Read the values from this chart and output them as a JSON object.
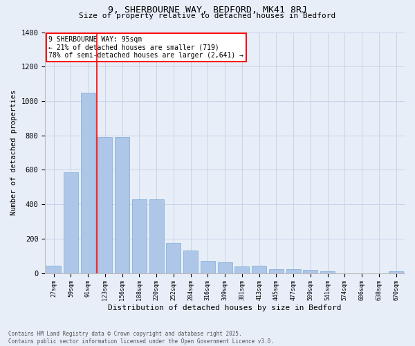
{
  "title_line1": "9, SHERBOURNE WAY, BEDFORD, MK41 8RJ",
  "title_line2": "Size of property relative to detached houses in Bedford",
  "xlabel": "Distribution of detached houses by size in Bedford",
  "ylabel": "Number of detached properties",
  "categories": [
    "27sqm",
    "59sqm",
    "91sqm",
    "123sqm",
    "156sqm",
    "188sqm",
    "220sqm",
    "252sqm",
    "284sqm",
    "316sqm",
    "349sqm",
    "381sqm",
    "413sqm",
    "445sqm",
    "477sqm",
    "509sqm",
    "541sqm",
    "574sqm",
    "606sqm",
    "638sqm",
    "670sqm"
  ],
  "values": [
    45,
    585,
    1050,
    790,
    790,
    430,
    430,
    175,
    130,
    70,
    65,
    40,
    45,
    25,
    25,
    20,
    10,
    0,
    0,
    0,
    10
  ],
  "bar_color": "#aec6e8",
  "bar_edge_color": "#7aadd4",
  "grid_color": "#c8d4e8",
  "background_color": "#e8eef8",
  "vline_color": "red",
  "vline_position": 2.5,
  "annotation_text": "9 SHERBOURNE WAY: 95sqm\n← 21% of detached houses are smaller (719)\n78% of semi-detached houses are larger (2,641) →",
  "annotation_box_color": "white",
  "annotation_box_edge": "red",
  "ylim": [
    0,
    1400
  ],
  "yticks": [
    0,
    200,
    400,
    600,
    800,
    1000,
    1200,
    1400
  ],
  "footer_line1": "Contains HM Land Registry data © Crown copyright and database right 2025.",
  "footer_line2": "Contains public sector information licensed under the Open Government Licence v3.0."
}
